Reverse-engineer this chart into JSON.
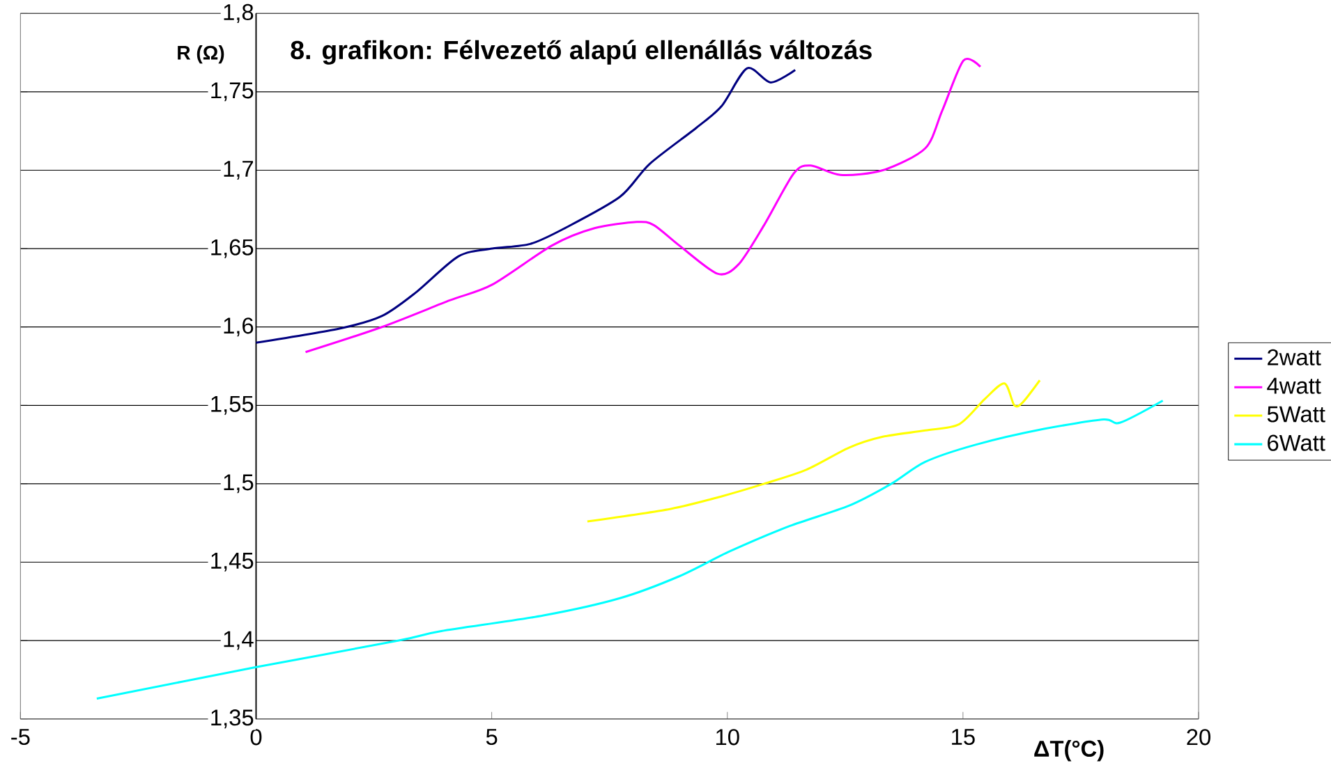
{
  "chart_data": {
    "type": "line",
    "title": "8. grafikon: Félvezető alapú ellenállás változás",
    "xlabel": "ΔT(°C)",
    "ylabel": "R (Ω)",
    "xlim": [
      -5,
      20
    ],
    "xticks": [
      -5,
      0,
      5,
      10,
      15,
      20
    ],
    "ylim": [
      1.35,
      1.8
    ],
    "yticks": [
      {
        "value": 1.35,
        "label": "1,35"
      },
      {
        "value": 1.4,
        "label": "1,4"
      },
      {
        "value": 1.45,
        "label": "1,45"
      },
      {
        "value": 1.5,
        "label": "1,5"
      },
      {
        "value": 1.55,
        "label": "1,55"
      },
      {
        "value": 1.6,
        "label": "1,6"
      },
      {
        "value": 1.65,
        "label": "1,65"
      },
      {
        "value": 1.7,
        "label": "1,7"
      },
      {
        "value": 1.75,
        "label": "1,75"
      },
      {
        "value": 1.8,
        "label": "1,8"
      }
    ],
    "grid": "y",
    "legend": "right",
    "series": [
      {
        "name": "2watt",
        "color": "#000080",
        "x": [
          0,
          1.77,
          2.67,
          3.39,
          4.29,
          5.01,
          5.82,
          6.55,
          7.72,
          8.35,
          9.34,
          9.88,
          10.42,
          10.92,
          11.44
        ],
        "values": [
          1.59,
          1.599,
          1.607,
          1.622,
          1.645,
          1.65,
          1.653,
          1.663,
          1.683,
          1.704,
          1.727,
          1.741,
          1.765,
          1.756,
          1.764
        ]
      },
      {
        "name": "4watt",
        "color": "#ff00ff",
        "x": [
          1.05,
          2.67,
          4.11,
          5.01,
          6.28,
          7.18,
          8.08,
          8.44,
          8.98,
          9.79,
          10.24,
          10.78,
          11.41,
          11.77,
          12.4,
          13.3,
          14.2,
          14.56,
          15.01,
          15.37
        ],
        "values": [
          1.584,
          1.6,
          1.617,
          1.627,
          1.652,
          1.663,
          1.667,
          1.665,
          1.652,
          1.634,
          1.64,
          1.665,
          1.698,
          1.703,
          1.697,
          1.7,
          1.714,
          1.738,
          1.77,
          1.766
        ]
      },
      {
        "name": "5Watt",
        "color": "#ffff00",
        "x": [
          7.03,
          8.8,
          9.88,
          10.78,
          11.68,
          12.58,
          13.3,
          14.2,
          14.92,
          15.46,
          15.88,
          16.09,
          16.27,
          16.63
        ],
        "values": [
          1.476,
          1.484,
          1.492,
          1.5,
          1.509,
          1.523,
          1.53,
          1.534,
          1.538,
          1.554,
          1.564,
          1.55,
          1.552,
          1.566
        ]
      },
      {
        "name": "6Watt",
        "color": "#00ffff",
        "x": [
          -3.38,
          0,
          3.03,
          3.93,
          6.1,
          7.72,
          8.98,
          10.06,
          11.32,
          12.58,
          13.48,
          14.2,
          15.28,
          16.72,
          17.98,
          18.34,
          19.24
        ],
        "values": [
          1.363,
          1.383,
          1.4,
          1.406,
          1.416,
          1.427,
          1.441,
          1.457,
          1.473,
          1.486,
          1.5,
          1.514,
          1.525,
          1.535,
          1.541,
          1.539,
          1.553
        ]
      }
    ]
  }
}
